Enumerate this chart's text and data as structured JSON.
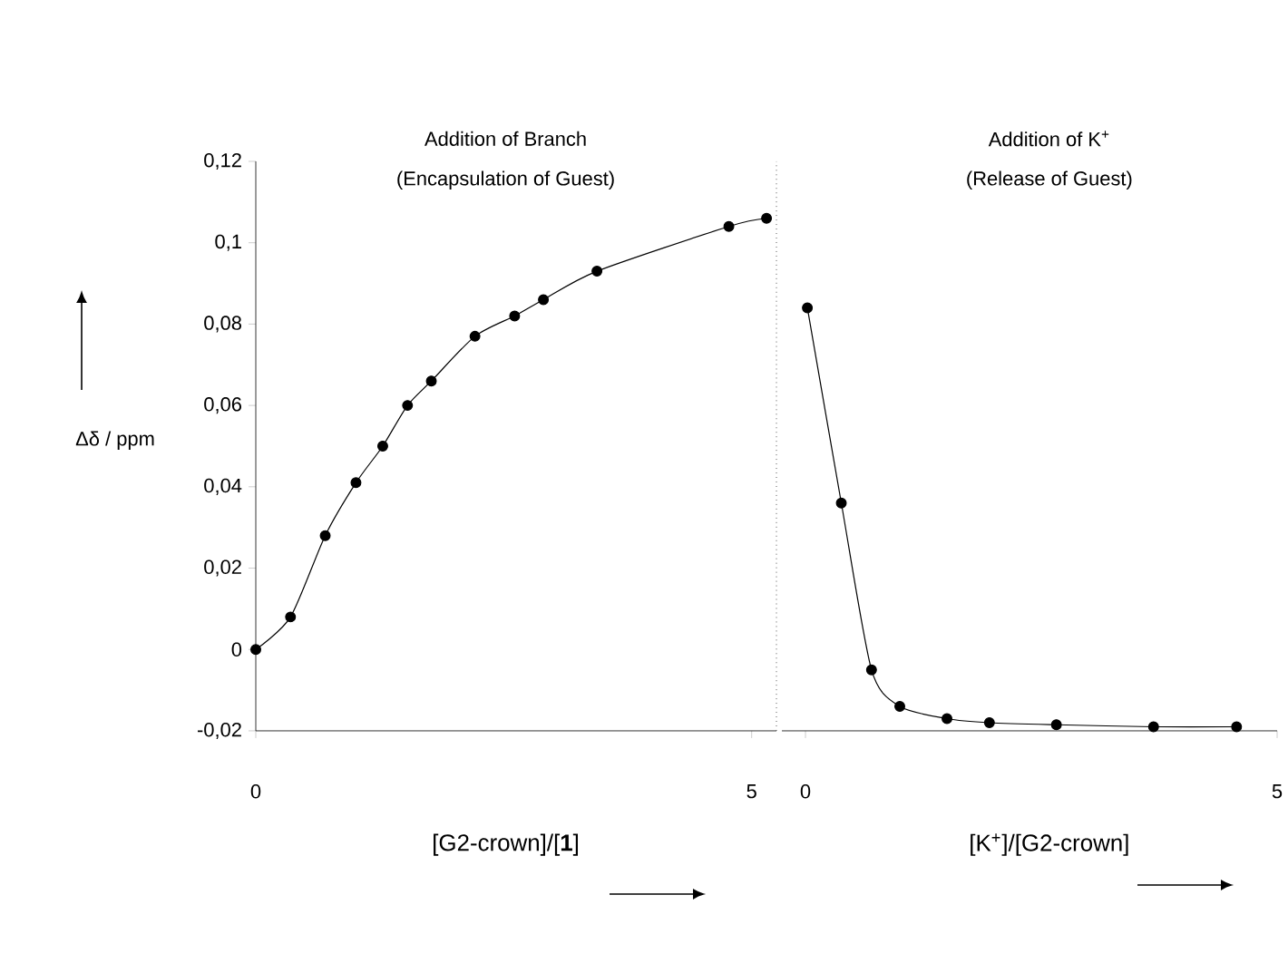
{
  "chart_data": [
    {
      "type": "line",
      "xlabel": "[G2-crown]/[**1**]",
      "ylabel": "Δδ / ppm",
      "annotations": [
        "Addition of Branch",
        "(Encapsulation of Guest)"
      ],
      "x": [
        0,
        0.35,
        0.7,
        1.01,
        1.28,
        1.53,
        1.77,
        2.21,
        2.61,
        2.9,
        3.44,
        4.77,
        5.15
      ],
      "values": [
        0,
        0.008,
        0.028,
        0.041,
        0.05,
        0.06,
        0.066,
        0.077,
        0.082,
        0.086,
        0.093,
        0.104,
        0.106
      ],
      "color": "#000000",
      "marker": "circle",
      "line_style": "solid",
      "xlim": [
        0,
        5.25
      ],
      "xticks": [
        0,
        5
      ],
      "ylim": [
        -0.02,
        0.12
      ],
      "yticks": [
        {
          "value": -0.02,
          "label": "-0,02"
        },
        0,
        {
          "value": 0.02,
          "label": "0,02"
        },
        {
          "value": 0.04,
          "label": "0,04"
        },
        {
          "value": 0.06,
          "label": "0,06"
        },
        {
          "value": 0.08,
          "label": "0,08"
        },
        {
          "value": 0.1,
          "label": "0,1"
        },
        {
          "value": 0.12,
          "label": "0,12"
        }
      ],
      "ref_lines": [
        {
          "axis": "x",
          "value": 5.25,
          "line_style": "dotted",
          "color": "#555555"
        }
      ]
    },
    {
      "type": "line",
      "xlabel": "[K$^{+}$]/[G2-crown]",
      "annotations": [
        "Addition of K$^{+}$",
        "(Release of Guest)"
      ],
      "x": [
        0.02,
        0.38,
        0.7,
        1.0,
        1.5,
        1.95,
        2.66,
        3.69,
        4.57
      ],
      "values": [
        0.084,
        0.036,
        -0.005,
        -0.014,
        -0.017,
        -0.018,
        -0.0185,
        -0.019,
        -0.019
      ],
      "color": "#000000",
      "marker": "circle",
      "line_style": "solid",
      "xlim": [
        -0.25,
        5
      ],
      "xticks": [
        0,
        5
      ],
      "ylim": [
        -0.02,
        0.12
      ],
      "tick_labels": "x"
    }
  ]
}
